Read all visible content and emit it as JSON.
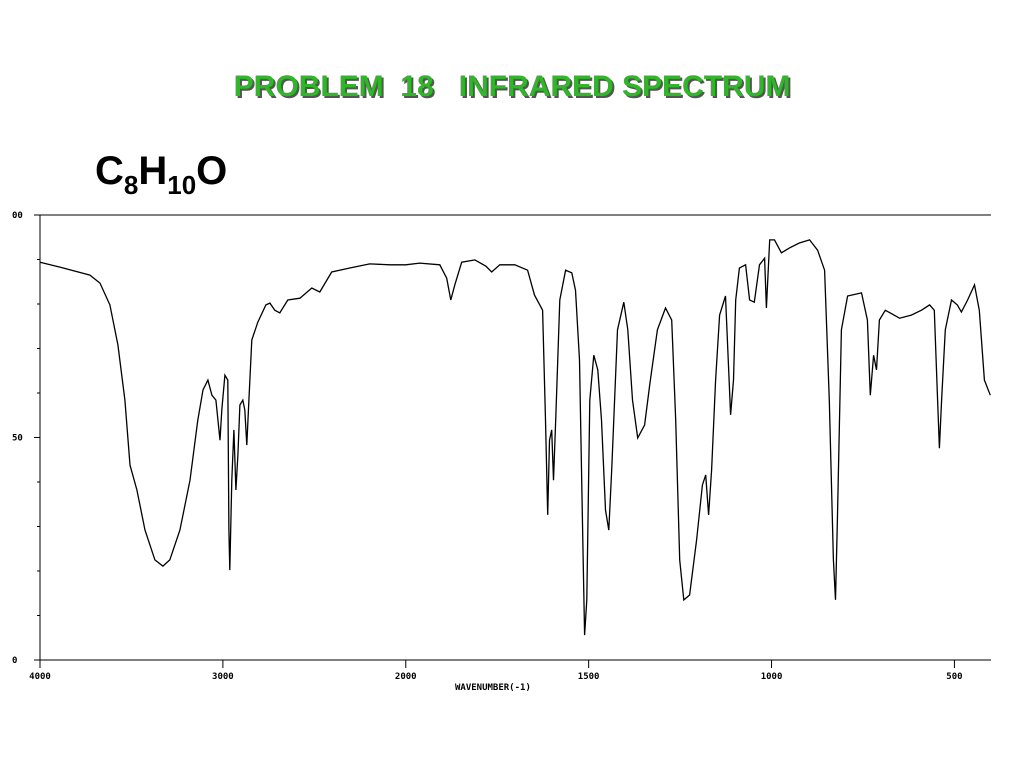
{
  "header": {
    "title": "PROBLEM  18   INFRARED SPECTRUM",
    "formula": [
      "C",
      "8",
      "H",
      "10",
      "O"
    ]
  },
  "chart_data": {
    "type": "line",
    "xlabel": "WAVENUMBER(-1)",
    "xlim": [
      4000,
      400
    ],
    "x_scale_break": 2000,
    "xticks": [
      4000,
      3000,
      2000,
      1500,
      1000,
      500
    ],
    "ylim": [
      0,
      100
    ],
    "yticks": [
      0,
      50,
      {
        "value": 100,
        "label": "00"
      }
    ],
    "yminor": [
      10,
      20,
      30,
      40,
      60,
      70,
      80,
      90
    ],
    "series": [
      {
        "color": "#000000",
        "x": [
          4000,
          3891,
          3727,
          3672,
          3618,
          3574,
          3536,
          3508,
          3470,
          3426,
          3372,
          3328,
          3290,
          3235,
          3180,
          3137,
          3109,
          3082,
          3060,
          3038,
          3016,
          3006,
          2989,
          2973,
          2967,
          2962,
          2951,
          2940,
          2929,
          2918,
          2907,
          2891,
          2880,
          2869,
          2858,
          2842,
          2809,
          2765,
          2743,
          2716,
          2689,
          2645,
          2579,
          2514,
          2470,
          2405,
          2306,
          2197,
          2088,
          2000,
          1962,
          1907,
          1888,
          1877,
          1866,
          1847,
          1811,
          1781,
          1765,
          1743,
          1702,
          1667,
          1648,
          1626,
          1618,
          1612,
          1607,
          1601,
          1596,
          1590,
          1579,
          1563,
          1546,
          1536,
          1525,
          1516,
          1511,
          1505,
          1497,
          1486,
          1475,
          1465,
          1454,
          1445,
          1437,
          1421,
          1404,
          1393,
          1380,
          1366,
          1347,
          1333,
          1312,
          1290,
          1273,
          1262,
          1251,
          1240,
          1224,
          1205,
          1189,
          1180,
          1172,
          1164,
          1153,
          1142,
          1126,
          1112,
          1104,
          1098,
          1088,
          1071,
          1060,
          1047,
          1033,
          1019,
          1014,
          1005,
          992,
          973,
          951,
          924,
          896,
          874,
          855,
          842,
          831,
          825,
          820,
          809,
          792,
          754,
          738,
          730,
          721,
          713,
          705,
          689,
          650,
          618,
          590,
          568,
          555,
          546,
          541,
          535,
          525,
          508,
          492,
          481,
          464,
          445,
          432,
          418,
          402
        ],
        "values": [
          89.4,
          88.3,
          86.5,
          84.7,
          79.8,
          70.8,
          58.4,
          43.8,
          38.2,
          29.2,
          22.5,
          21.1,
          22.5,
          29.2,
          40.4,
          53.9,
          60.7,
          62.9,
          59.5,
          58.4,
          49.4,
          56.2,
          64.0,
          62.9,
          29.2,
          20.2,
          40.4,
          51.7,
          38.2,
          46.1,
          57.3,
          58.4,
          56.2,
          48.3,
          58.4,
          71.9,
          75.9,
          79.8,
          80.2,
          78.6,
          78.0,
          80.9,
          81.3,
          83.6,
          82.7,
          87.2,
          88.1,
          89.0,
          88.8,
          88.8,
          89.2,
          88.8,
          85.8,
          80.9,
          84.3,
          89.4,
          89.9,
          88.5,
          87.2,
          88.8,
          88.8,
          87.6,
          82.0,
          78.6,
          53.9,
          32.6,
          49.4,
          51.7,
          40.4,
          53.9,
          80.9,
          87.6,
          87.0,
          83.1,
          67.4,
          27.0,
          5.6,
          13.5,
          58.4,
          68.5,
          65.2,
          53.9,
          33.7,
          29.2,
          42.7,
          74.2,
          80.4,
          74.2,
          58.4,
          49.9,
          52.8,
          61.8,
          74.2,
          79.1,
          76.4,
          53.9,
          22.5,
          13.5,
          14.6,
          27.0,
          39.3,
          41.6,
          32.6,
          42.7,
          62.9,
          77.5,
          81.8,
          55.1,
          62.9,
          80.9,
          88.1,
          88.8,
          80.9,
          80.4,
          88.8,
          90.3,
          79.1,
          94.4,
          94.4,
          91.5,
          92.6,
          93.7,
          94.4,
          92.1,
          87.6,
          58.4,
          22.5,
          13.5,
          31.5,
          74.2,
          81.8,
          82.5,
          76.4,
          59.5,
          68.5,
          65.2,
          76.4,
          78.6,
          76.8,
          77.5,
          78.6,
          79.8,
          78.6,
          58.4,
          47.6,
          58.4,
          74.2,
          80.9,
          79.8,
          78.2,
          80.9,
          84.3,
          78.6,
          62.9,
          59.5
        ]
      }
    ]
  }
}
